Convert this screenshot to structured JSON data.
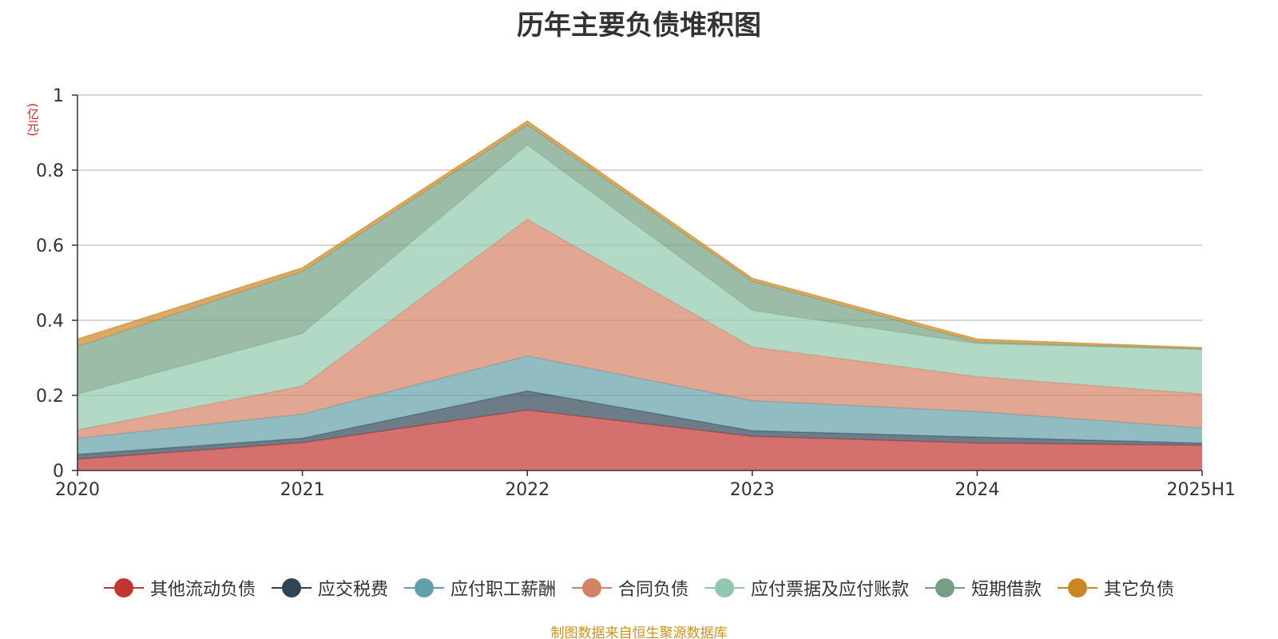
{
  "title": "历年主要负债堆积图",
  "unit_label": "(亿元)",
  "source": "制图数据来自恒生聚源数据库",
  "chart_data": {
    "type": "area",
    "stacked": true,
    "title": "历年主要负债堆积图",
    "ylabel": "(亿元)",
    "categories": [
      "2020",
      "2021",
      "2022",
      "2023",
      "2024",
      "2025H1"
    ],
    "ylim": [
      0,
      1
    ],
    "yticks": [
      "0",
      "0.2",
      "0.4",
      "0.6",
      "0.8",
      "1"
    ],
    "yticks_values": [
      0,
      0.2,
      0.4,
      0.6,
      0.8,
      1
    ],
    "grid": true,
    "legend_position": "bottom",
    "series": [
      {
        "name": "其他流动负债",
        "color": "#c23531",
        "values": [
          0.03,
          0.074,
          0.161,
          0.091,
          0.073,
          0.067
        ]
      },
      {
        "name": "应交税费",
        "color": "#2f4554",
        "values": [
          0.013,
          0.012,
          0.051,
          0.015,
          0.016,
          0.006
        ]
      },
      {
        "name": "应付职工薪酬",
        "color": "#61a0a8",
        "values": [
          0.043,
          0.064,
          0.093,
          0.08,
          0.068,
          0.04
        ]
      },
      {
        "name": "合同负债",
        "color": "#d48265",
        "values": [
          0.022,
          0.075,
          0.364,
          0.143,
          0.093,
          0.091
        ]
      },
      {
        "name": "应付票据及应付账款",
        "color": "#91c7ae",
        "values": [
          0.095,
          0.14,
          0.198,
          0.097,
          0.088,
          0.118
        ]
      },
      {
        "name": "短期借款",
        "color": "#749f83",
        "values": [
          0.127,
          0.165,
          0.054,
          0.078,
          0.004,
          0.002
        ]
      },
      {
        "name": "其它负债",
        "color": "#ca8622",
        "values": [
          0.02,
          0.01,
          0.01,
          0.008,
          0.008,
          0.003
        ]
      }
    ]
  }
}
